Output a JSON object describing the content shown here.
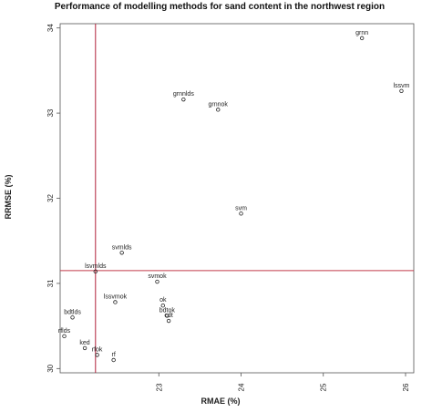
{
  "chart_data": {
    "type": "scatter",
    "title": "Performance of modelling methods for sand content in the northwest region",
    "xlabel": "RMAE (%)",
    "ylabel": "RRMSE (%)",
    "xlim": [
      21.8,
      26.1
    ],
    "ylim": [
      29.95,
      34.05
    ],
    "xticks": [
      23,
      24,
      25,
      26
    ],
    "yticks": [
      30,
      31,
      32,
      33,
      34
    ],
    "grid": false,
    "reference_lines": [
      {
        "orientation": "vertical",
        "x": 22.23,
        "color": "#b0203a"
      },
      {
        "orientation": "horizontal",
        "y": 31.15,
        "color": "#c23b4a"
      }
    ],
    "points": [
      {
        "label": "grnn",
        "x": 25.47,
        "y": 33.88
      },
      {
        "label": "lssvm",
        "x": 25.95,
        "y": 33.26
      },
      {
        "label": "grnnlds",
        "x": 23.3,
        "y": 33.16
      },
      {
        "label": "grnnok",
        "x": 23.72,
        "y": 33.04
      },
      {
        "label": "svm",
        "x": 24.0,
        "y": 31.82
      },
      {
        "label": "svmlds",
        "x": 22.55,
        "y": 31.36
      },
      {
        "label": "lsvmlds",
        "x": 22.23,
        "y": 31.14
      },
      {
        "label": "svmok",
        "x": 22.98,
        "y": 31.02
      },
      {
        "label": "lssvmok",
        "x": 22.47,
        "y": 30.78
      },
      {
        "label": "ok",
        "x": 23.05,
        "y": 30.74
      },
      {
        "label": "bdtok",
        "x": 23.1,
        "y": 30.62
      },
      {
        "label": "cdt",
        "x": 23.12,
        "y": 30.56
      },
      {
        "label": "bdtlds",
        "x": 21.95,
        "y": 30.6
      },
      {
        "label": "rflds",
        "x": 21.85,
        "y": 30.38
      },
      {
        "label": "ked",
        "x": 22.1,
        "y": 30.24
      },
      {
        "label": "rfok",
        "x": 22.25,
        "y": 30.16
      },
      {
        "label": "rf",
        "x": 22.45,
        "y": 30.1
      }
    ]
  }
}
